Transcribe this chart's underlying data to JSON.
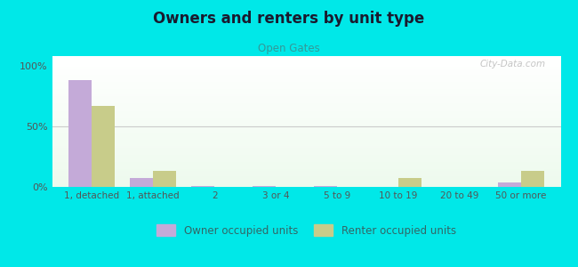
{
  "title": "Owners and renters by unit type",
  "subtitle": "Open Gates",
  "categories": [
    "1, detached",
    "1, attached",
    "2",
    "3 or 4",
    "5 to 9",
    "10 to 19",
    "20 to 49",
    "50 or more"
  ],
  "owner_values": [
    88,
    7,
    0.5,
    1,
    0.5,
    0,
    0,
    4
  ],
  "renter_values": [
    67,
    13,
    0,
    0,
    0,
    7,
    0,
    13
  ],
  "owner_color": "#c4aad8",
  "renter_color": "#c8cc8a",
  "background_color": "#00e8e8",
  "ylabel_ticks": [
    "0%",
    "50%",
    "100%"
  ],
  "ytick_values": [
    0,
    50,
    100
  ],
  "legend_owner": "Owner occupied units",
  "legend_renter": "Renter occupied units",
  "bar_width": 0.38,
  "ylim": [
    0,
    108
  ],
  "watermark": "City-Data.com"
}
